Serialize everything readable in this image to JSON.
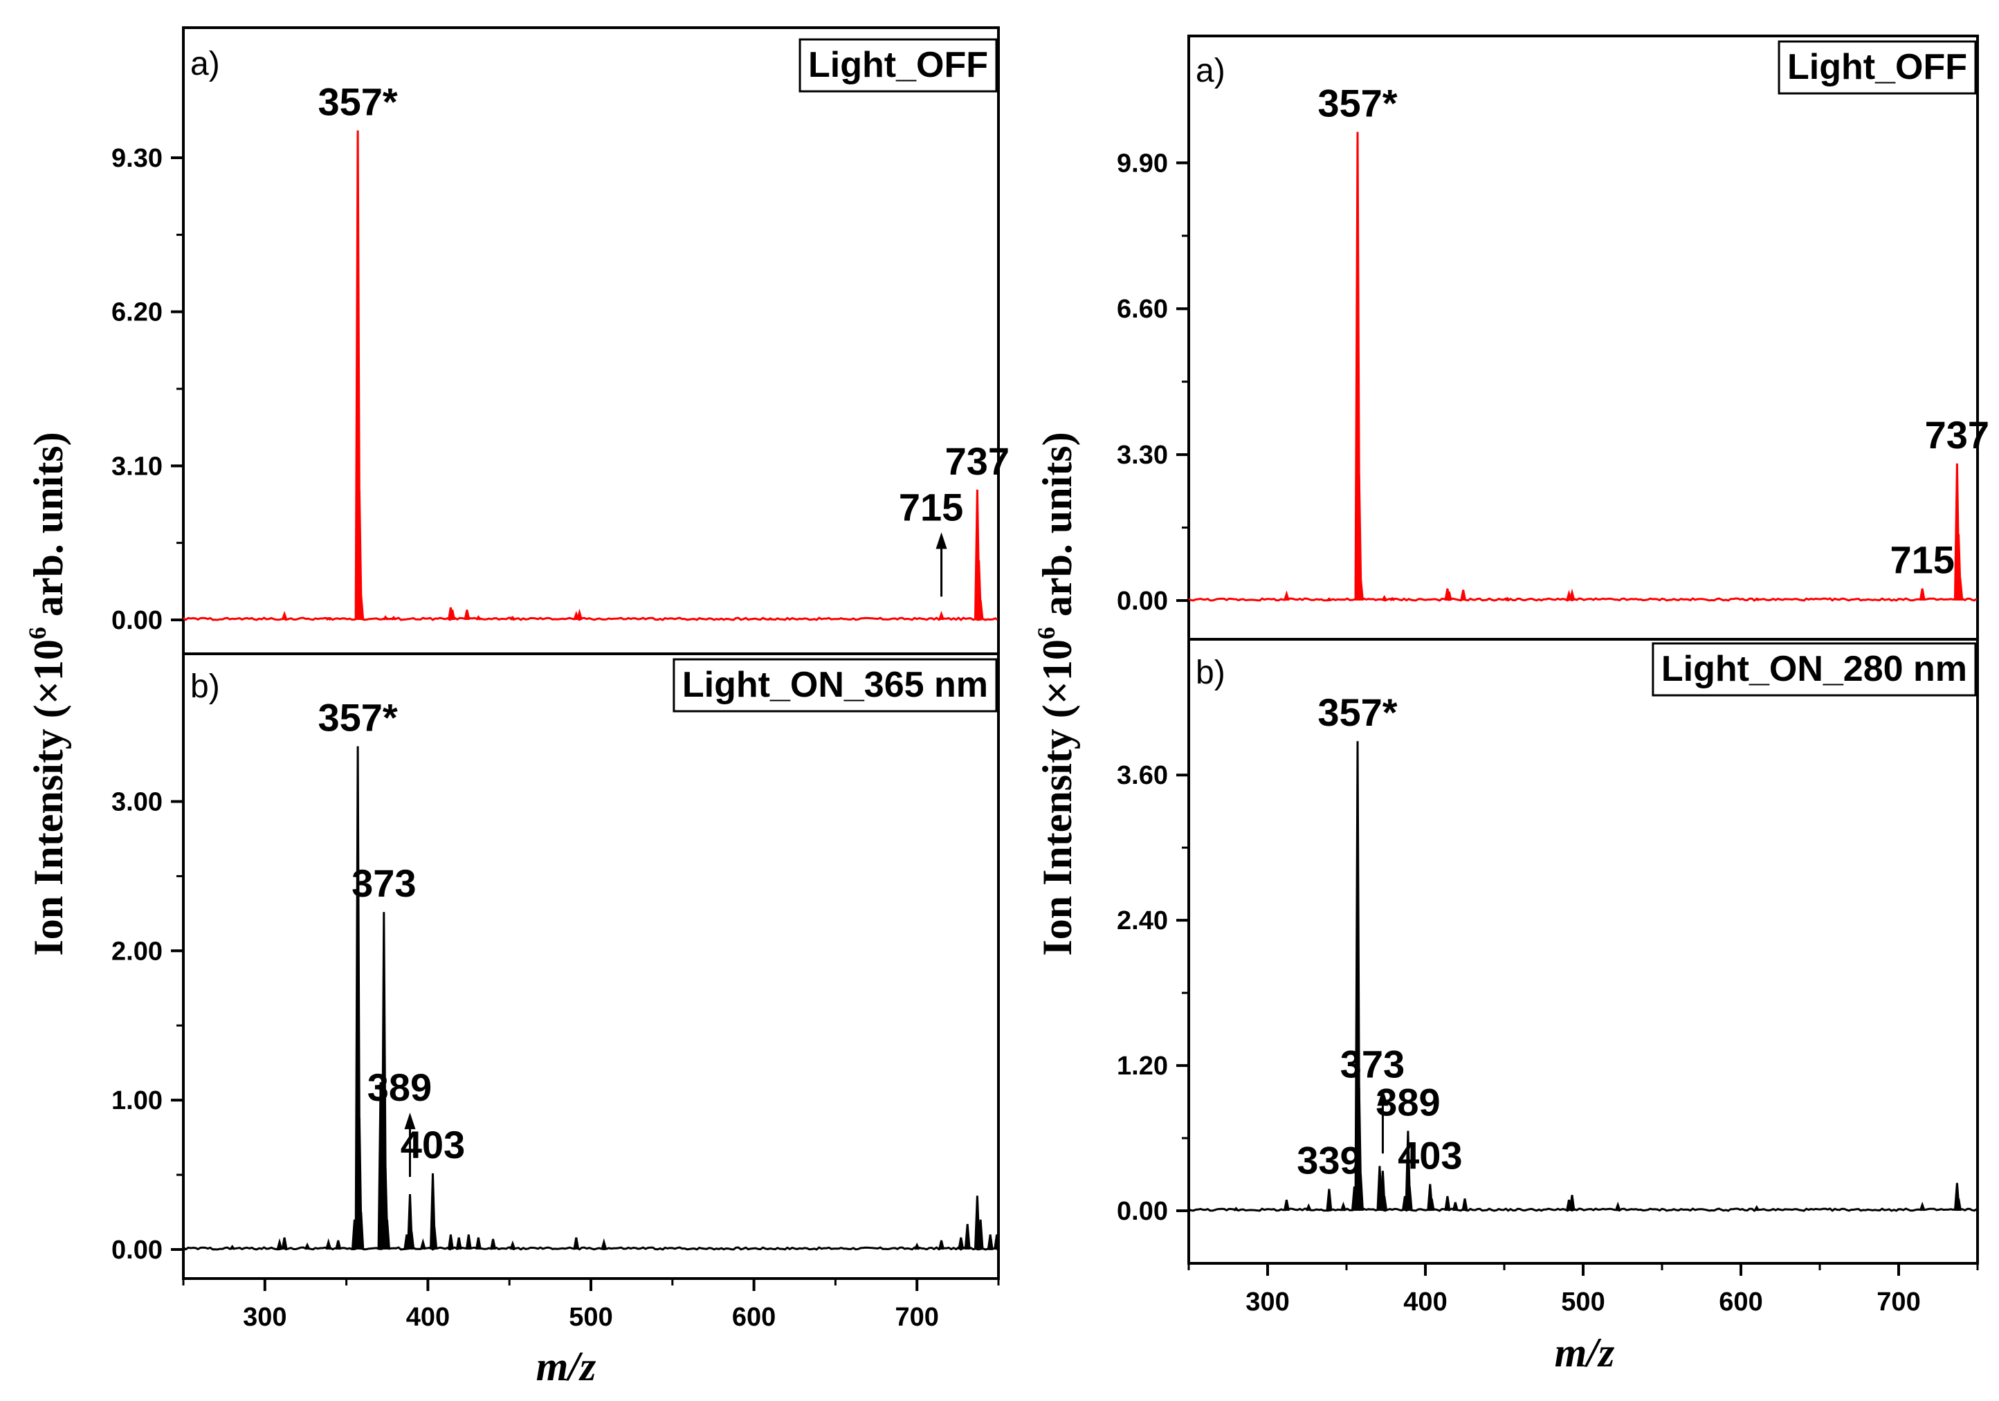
{
  "figure": {
    "left": {
      "ylabel_prefix": "Ion Intensity (×10",
      "ylabel_exp": "6",
      "ylabel_suffix": " arb. units)",
      "xlabel": "m/z"
    },
    "right": {
      "ylabel_prefix": "Ion Intensity (×10",
      "ylabel_exp": "6",
      "ylabel_suffix": " arb. units)",
      "xlabel": "m/z"
    }
  },
  "chart_data": [
    {
      "id": "left-a",
      "type": "line",
      "panel_label": "a)",
      "condition": "Light_OFF",
      "color": "#ff0000",
      "xlim": [
        250,
        750
      ],
      "ylim": [
        -0.0,
        11.5
      ],
      "xticks": [
        300,
        400,
        500,
        600,
        700
      ],
      "yticks": [
        0.0,
        3.1,
        6.2,
        9.3
      ],
      "ytick_labels": [
        "0.00",
        "3.10",
        "6.20",
        "9.30"
      ],
      "peaks": [
        {
          "x": 312,
          "y": 0.12
        },
        {
          "x": 339,
          "y": 0.03
        },
        {
          "x": 357,
          "y": 9.85
        },
        {
          "x": 358,
          "y": 2.6
        },
        {
          "x": 359,
          "y": 0.5
        },
        {
          "x": 374,
          "y": 0.06
        },
        {
          "x": 379,
          "y": 0.05
        },
        {
          "x": 414,
          "y": 0.25
        },
        {
          "x": 415,
          "y": 0.2
        },
        {
          "x": 424,
          "y": 0.2
        },
        {
          "x": 431,
          "y": 0.06
        },
        {
          "x": 452,
          "y": 0.05
        },
        {
          "x": 491,
          "y": 0.12
        },
        {
          "x": 493,
          "y": 0.15
        },
        {
          "x": 610,
          "y": 0.03
        },
        {
          "x": 715,
          "y": 0.12
        },
        {
          "x": 737,
          "y": 2.62
        },
        {
          "x": 738,
          "y": 1.2
        },
        {
          "x": 739,
          "y": 0.4
        }
      ],
      "annotations": [
        {
          "text": "357*",
          "x": 357,
          "y": 9.85
        },
        {
          "text": "715",
          "x": 715,
          "y": 0.12,
          "arrow": true
        },
        {
          "text": "737",
          "x": 737,
          "y": 2.62
        }
      ]
    },
    {
      "id": "left-b",
      "type": "line",
      "panel_label": "b)",
      "condition": "Light_ON_365 nm",
      "color": "#000000",
      "xlim": [
        250,
        750
      ],
      "ylim": [
        0.0,
        3.85
      ],
      "xticks": [
        300,
        400,
        500,
        600,
        700
      ],
      "yticks": [
        0.0,
        1.0,
        2.0,
        3.0
      ],
      "ytick_labels": [
        "0.00",
        "1.00",
        "2.00",
        "3.00"
      ],
      "peaks": [
        {
          "x": 280,
          "y": 0.02
        },
        {
          "x": 309,
          "y": 0.05
        },
        {
          "x": 312,
          "y": 0.08
        },
        {
          "x": 326,
          "y": 0.03
        },
        {
          "x": 339,
          "y": 0.05
        },
        {
          "x": 345,
          "y": 0.06
        },
        {
          "x": 355,
          "y": 0.2
        },
        {
          "x": 357,
          "y": 3.37
        },
        {
          "x": 358,
          "y": 0.88
        },
        {
          "x": 359,
          "y": 0.25
        },
        {
          "x": 371,
          "y": 1.12
        },
        {
          "x": 373,
          "y": 2.26
        },
        {
          "x": 374,
          "y": 0.55
        },
        {
          "x": 375,
          "y": 0.2
        },
        {
          "x": 387,
          "y": 0.1
        },
        {
          "x": 389,
          "y": 0.37
        },
        {
          "x": 390,
          "y": 0.12
        },
        {
          "x": 397,
          "y": 0.05
        },
        {
          "x": 403,
          "y": 0.51
        },
        {
          "x": 404,
          "y": 0.15
        },
        {
          "x": 414,
          "y": 0.1
        },
        {
          "x": 419,
          "y": 0.08
        },
        {
          "x": 425,
          "y": 0.1
        },
        {
          "x": 431,
          "y": 0.08
        },
        {
          "x": 440,
          "y": 0.07
        },
        {
          "x": 452,
          "y": 0.04
        },
        {
          "x": 491,
          "y": 0.08
        },
        {
          "x": 508,
          "y": 0.05
        },
        {
          "x": 700,
          "y": 0.03
        },
        {
          "x": 715,
          "y": 0.06
        },
        {
          "x": 727,
          "y": 0.08
        },
        {
          "x": 731,
          "y": 0.17
        },
        {
          "x": 737,
          "y": 0.36
        },
        {
          "x": 739,
          "y": 0.2
        },
        {
          "x": 745,
          "y": 0.1
        },
        {
          "x": 749,
          "y": 0.1
        }
      ],
      "annotations": [
        {
          "text": "357*",
          "x": 357,
          "y": 3.37
        },
        {
          "text": "373",
          "x": 373,
          "y": 2.26
        },
        {
          "text": "389",
          "x": 389,
          "y": 0.37,
          "arrow": true
        },
        {
          "text": "403",
          "x": 403,
          "y": 0.51
        }
      ]
    },
    {
      "id": "right-a",
      "type": "line",
      "panel_label": "a)",
      "condition": "Light_OFF",
      "color": "#ff0000",
      "xlim": [
        250,
        750
      ],
      "ylim": [
        0.0,
        12.3
      ],
      "xticks": [
        300,
        400,
        500,
        600,
        700
      ],
      "yticks": [
        0.0,
        3.3,
        6.6,
        9.9
      ],
      "ytick_labels": [
        "0.00",
        "3.30",
        "6.60",
        "9.90"
      ],
      "peaks": [
        {
          "x": 312,
          "y": 0.15
        },
        {
          "x": 339,
          "y": 0.04
        },
        {
          "x": 357,
          "y": 10.6
        },
        {
          "x": 358,
          "y": 2.85
        },
        {
          "x": 359,
          "y": 0.5
        },
        {
          "x": 374,
          "y": 0.08
        },
        {
          "x": 379,
          "y": 0.05
        },
        {
          "x": 414,
          "y": 0.27
        },
        {
          "x": 415,
          "y": 0.2
        },
        {
          "x": 424,
          "y": 0.24
        },
        {
          "x": 452,
          "y": 0.05
        },
        {
          "x": 491,
          "y": 0.16
        },
        {
          "x": 493,
          "y": 0.18
        },
        {
          "x": 610,
          "y": 0.04
        },
        {
          "x": 715,
          "y": 0.27
        },
        {
          "x": 737,
          "y": 3.1
        },
        {
          "x": 738,
          "y": 1.5
        },
        {
          "x": 739,
          "y": 0.5
        }
      ],
      "annotations": [
        {
          "text": "357*",
          "x": 357,
          "y": 10.6
        },
        {
          "text": "715",
          "x": 715,
          "y": 0.27
        },
        {
          "text": "737",
          "x": 737,
          "y": 3.1
        }
      ]
    },
    {
      "id": "right-b",
      "type": "line",
      "panel_label": "b)",
      "condition": "Light_ON_280 nm",
      "color": "#000000",
      "xlim": [
        250,
        750
      ],
      "ylim": [
        0.0,
        4.55
      ],
      "xticks": [
        300,
        400,
        500,
        600,
        700
      ],
      "yticks": [
        0.0,
        1.2,
        2.4,
        3.6
      ],
      "ytick_labels": [
        "0.00",
        "1.20",
        "2.40",
        "3.60"
      ],
      "peaks": [
        {
          "x": 280,
          "y": 0.02
        },
        {
          "x": 312,
          "y": 0.09
        },
        {
          "x": 326,
          "y": 0.04
        },
        {
          "x": 339,
          "y": 0.18
        },
        {
          "x": 348,
          "y": 0.05
        },
        {
          "x": 355,
          "y": 0.2
        },
        {
          "x": 357,
          "y": 3.88
        },
        {
          "x": 358,
          "y": 1.02
        },
        {
          "x": 359,
          "y": 0.3
        },
        {
          "x": 371,
          "y": 0.37
        },
        {
          "x": 373,
          "y": 0.33
        },
        {
          "x": 374,
          "y": 0.12
        },
        {
          "x": 387,
          "y": 0.12
        },
        {
          "x": 389,
          "y": 0.66
        },
        {
          "x": 390,
          "y": 0.2
        },
        {
          "x": 403,
          "y": 0.22
        },
        {
          "x": 404,
          "y": 0.1
        },
        {
          "x": 414,
          "y": 0.12
        },
        {
          "x": 419,
          "y": 0.07
        },
        {
          "x": 425,
          "y": 0.1
        },
        {
          "x": 491,
          "y": 0.09
        },
        {
          "x": 493,
          "y": 0.13
        },
        {
          "x": 522,
          "y": 0.05
        },
        {
          "x": 610,
          "y": 0.03
        },
        {
          "x": 715,
          "y": 0.05
        },
        {
          "x": 737,
          "y": 0.23
        },
        {
          "x": 738,
          "y": 0.1
        }
      ],
      "annotations": [
        {
          "text": "339",
          "x": 339,
          "y": 0.18
        },
        {
          "text": "357*",
          "x": 357,
          "y": 3.88
        },
        {
          "text": "373",
          "x": 373,
          "y": 0.33,
          "arrow": true
        },
        {
          "text": "389",
          "x": 389,
          "y": 0.66
        },
        {
          "text": "403",
          "x": 403,
          "y": 0.22
        }
      ]
    }
  ]
}
